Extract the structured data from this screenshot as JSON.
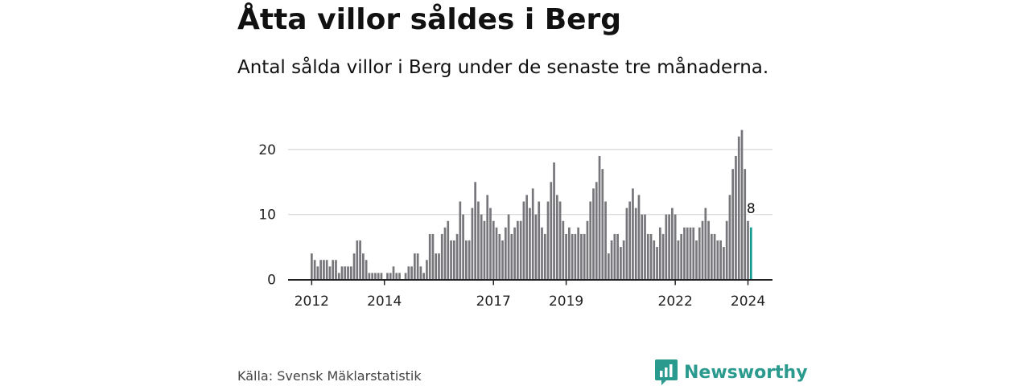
{
  "page": {
    "title": "Åtta villor såldes i Berg",
    "subtitle": "Antal sålda villor i Berg under de senaste tre månaderna.",
    "source": "Källa: Svensk Mäklarstatistik",
    "brand": "Newsworthy"
  },
  "colors": {
    "bar": "#76767b",
    "highlight": "#159b92",
    "grid": "#d6d6d6",
    "axis": "#222222",
    "brand": "#2a9a8e"
  },
  "chart_data": {
    "type": "bar",
    "title": "Åtta villor såldes i Berg",
    "subtitle": "Antal sålda villor i Berg under de senaste tre månaderna.",
    "xlabel": "",
    "ylabel": "",
    "ylim": [
      0,
      23
    ],
    "yticks": [
      0,
      10,
      20
    ],
    "xticks": [
      {
        "label": "2012",
        "index": 0
      },
      {
        "label": "2014",
        "index": 24
      },
      {
        "label": "2017",
        "index": 60
      },
      {
        "label": "2019",
        "index": 84
      },
      {
        "label": "2022",
        "index": 120
      },
      {
        "label": "2024",
        "index": 144
      }
    ],
    "grid": true,
    "values": [
      4,
      3,
      2,
      3,
      3,
      3,
      2,
      3,
      3,
      1,
      2,
      2,
      2,
      2,
      4,
      6,
      6,
      4,
      3,
      1,
      1,
      1,
      1,
      1,
      0,
      1,
      1,
      2,
      1,
      1,
      0,
      1,
      2,
      2,
      4,
      4,
      2,
      1,
      3,
      7,
      7,
      4,
      4,
      7,
      8,
      9,
      6,
      6,
      7,
      12,
      10,
      6,
      6,
      11,
      15,
      12,
      10,
      9,
      13,
      11,
      9,
      8,
      7,
      6,
      8,
      10,
      7,
      8,
      9,
      9,
      12,
      13,
      11,
      14,
      10,
      12,
      8,
      7,
      12,
      15,
      18,
      13,
      12,
      9,
      7,
      8,
      7,
      7,
      8,
      7,
      7,
      9,
      12,
      14,
      15,
      19,
      17,
      12,
      4,
      6,
      7,
      7,
      5,
      6,
      11,
      12,
      14,
      11,
      13,
      10,
      10,
      7,
      7,
      6,
      5,
      8,
      7,
      10,
      10,
      11,
      10,
      6,
      7,
      8,
      8,
      8,
      8,
      6,
      8,
      9,
      11,
      9,
      7,
      7,
      6,
      6,
      5,
      9,
      13,
      17,
      19,
      22,
      23,
      17,
      9,
      8
    ],
    "highlight_index": 145,
    "annotation": {
      "index": 145,
      "label": "8"
    }
  }
}
